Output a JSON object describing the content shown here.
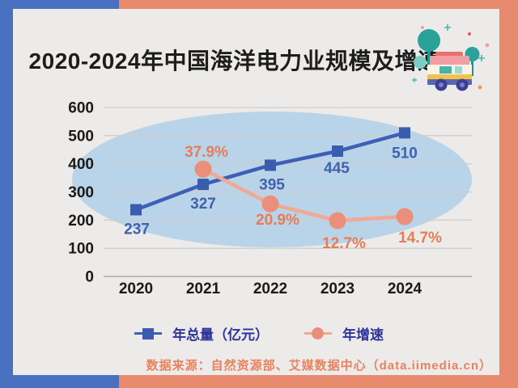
{
  "header": {
    "title": "2020-2024年中国海洋电力业规模及增速"
  },
  "decoration": {
    "icon": "camper-van-with-trees-icon"
  },
  "chart_data": {
    "type": "line",
    "title": "2020-2024年中国海洋电力业规模及增速",
    "categories": [
      "2020",
      "2021",
      "2022",
      "2023",
      "2024"
    ],
    "series": [
      {
        "name": "年总量（亿元）",
        "marker": "square",
        "axis": "primary",
        "values": [
          237,
          327,
          395,
          445,
          510
        ],
        "labels": [
          "237",
          "327",
          "395",
          "445",
          "510"
        ]
      },
      {
        "name": "年增速",
        "marker": "circle",
        "axis": "secondary",
        "unit": "%",
        "values": [
          null,
          37.9,
          20.9,
          12.7,
          14.7
        ],
        "labels": [
          null,
          "37.9%",
          "20.9%",
          "12.7%",
          "14.7%"
        ]
      }
    ],
    "y_axis": {
      "ticks": [
        0,
        100,
        200,
        300,
        400,
        500,
        600
      ],
      "range": [
        0,
        600
      ]
    },
    "grid": true,
    "legend_position": "bottom",
    "background_ellipse": true
  },
  "legend": {
    "items": [
      {
        "label": "年总量（亿元）",
        "marker": "square"
      },
      {
        "label": "年增速",
        "marker": "circle"
      }
    ]
  },
  "footer": {
    "source_text": "数据来源：自然资源部、艾媒数据中心（data.iimedia.cn）"
  },
  "colors": {
    "left_bar_blue": "#4a70c2",
    "right_bar_orange": "#e88a6d",
    "content_bg": "#ecebe9",
    "title_text": "#1d1d1d",
    "ellipse_fill": "#b9d3e9",
    "gridline": "#cfcecb",
    "zero_line": "#a8a6a3",
    "axis_text": "#1a1a1a",
    "total_line": "#3d60b6",
    "total_marker": "#3a5cae",
    "total_label": "#4061ae",
    "growth_line": "#f2a893",
    "growth_marker": "#ea907a",
    "growth_label": "#e87c55",
    "legend_text": "#2d3399",
    "footer_text": "#e8825f"
  }
}
